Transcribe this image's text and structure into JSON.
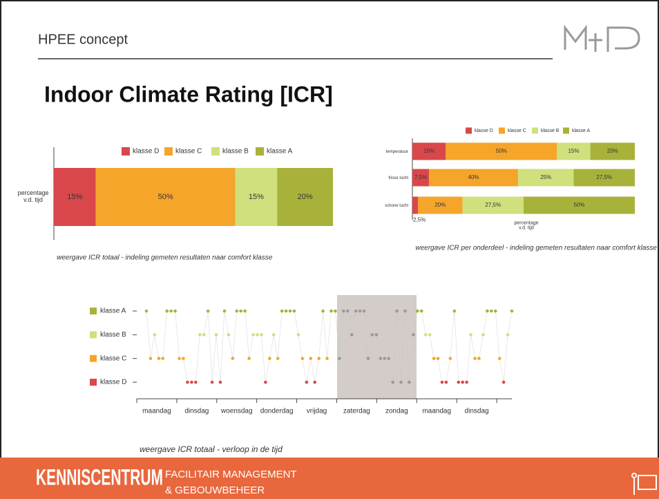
{
  "header": {
    "title": "HPEE concept"
  },
  "heading": "Indoor Climate Rating [ICR]",
  "chart_data": [
    {
      "type": "stacked-bar-h",
      "categories": [
        "percentage\nv.d. tijd"
      ],
      "xlim": [
        0,
        100
      ],
      "series": [
        {
          "name": "klasse D",
          "color": "#d9474b",
          "values": [
            15
          ],
          "value_labels": [
            "15%"
          ]
        },
        {
          "name": "klasse C",
          "color": "#f5a52a",
          "values": [
            50
          ],
          "value_labels": [
            "50%"
          ]
        },
        {
          "name": "klasse B",
          "color": "#cfe07c",
          "values": [
            15
          ],
          "value_labels": [
            "15%"
          ]
        },
        {
          "name": "klasse A",
          "color": "#a8b23a",
          "values": [
            20
          ],
          "value_labels": [
            "20%"
          ]
        }
      ],
      "caption": "weergave ICR totaal - indeling gemeten resultaten naar comfort klasse"
    },
    {
      "type": "stacked-bar-h",
      "categories": [
        "temperatuur",
        "frisse lucht",
        "schone lucht"
      ],
      "xlim": [
        0,
        100
      ],
      "xlabel": "percentage\nv.d. tijd",
      "series": [
        {
          "name": "klasse D",
          "color": "#d9474b",
          "values": [
            15,
            7.5,
            2.5
          ],
          "value_labels": [
            "15%",
            "7,5%",
            "2,5%"
          ]
        },
        {
          "name": "klasse C",
          "color": "#f5a52a",
          "values": [
            50,
            40,
            20
          ],
          "value_labels": [
            "50%",
            "40%",
            "20%"
          ]
        },
        {
          "name": "klasse B",
          "color": "#cfe07c",
          "values": [
            15,
            25,
            27.5
          ],
          "value_labels": [
            "15%",
            "25%",
            "27,5%"
          ]
        },
        {
          "name": "klasse A",
          "color": "#a8b23a",
          "values": [
            20,
            27.5,
            50
          ],
          "value_labels": [
            "20%",
            "27,5%",
            "50%"
          ]
        }
      ],
      "caption": "weergave ICR per onderdeel - indeling gemeten resultaten naar comfort klasse"
    },
    {
      "type": "dot-timeline",
      "ylim": [
        1,
        4
      ],
      "yticks": [
        {
          "value": 4,
          "label": "klasse A",
          "color": "#a8b23a"
        },
        {
          "value": 3,
          "label": "klasse B",
          "color": "#cfe07c"
        },
        {
          "value": 2,
          "label": "klasse C",
          "color": "#f5a52a"
        },
        {
          "value": 1,
          "label": "klasse D",
          "color": "#d9474b"
        }
      ],
      "days": [
        "maandag",
        "dinsdag",
        "woensdag",
        "donderdag",
        "vrijdag",
        "zaterdag",
        "zondag",
        "maandag",
        "dinsdag"
      ],
      "values": [
        4,
        2,
        3,
        2,
        2,
        4,
        4,
        4,
        2,
        2,
        1,
        1,
        1,
        3,
        3,
        4,
        1,
        3,
        1,
        4,
        3,
        2,
        4,
        4,
        4,
        2,
        3,
        3,
        3,
        1,
        2,
        3,
        2,
        4,
        4,
        4,
        4,
        3,
        2,
        1,
        2,
        1,
        2,
        4,
        2,
        4,
        4,
        2,
        4,
        4,
        3,
        4,
        4,
        4,
        2,
        3,
        3,
        2,
        2,
        2,
        1,
        4,
        1,
        4,
        1,
        3,
        4,
        4,
        3,
        3,
        2,
        2,
        1,
        1,
        2,
        4,
        1,
        1,
        1,
        3,
        2,
        2,
        3,
        4,
        4,
        4,
        2,
        1,
        3,
        4
      ],
      "caption": "weergave ICR totaal - verloop in de tijd"
    }
  ],
  "footer": {
    "brand": "KENNISCENTRUM",
    "line1": "FACILITAIR MANAGEMENT",
    "line2": "& GEBOUWBEHEER"
  }
}
